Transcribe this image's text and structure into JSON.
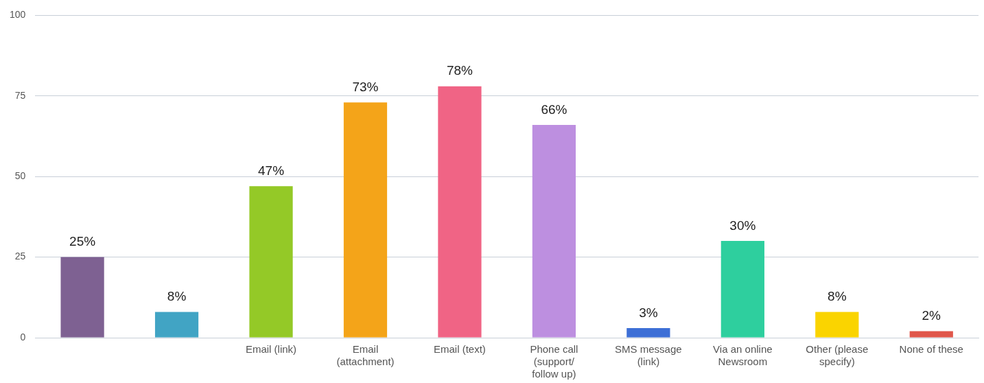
{
  "chart_data": {
    "type": "bar",
    "categories": [
      null,
      null,
      "Email (link)",
      "Email (attachment)",
      "Email (text)",
      "Phone call (support/ follow up)",
      "SMS message (link)",
      "Via an online Newsroom",
      "Other (please specify)",
      "None of these"
    ],
    "values": [
      25,
      8,
      47,
      73,
      78,
      66,
      3,
      30,
      8,
      2
    ],
    "value_labels": [
      "25%",
      "8%",
      "47%",
      "73%",
      "78%",
      "66%",
      "3%",
      "30%",
      "8%",
      "2%"
    ],
    "colors": [
      "#7e6192",
      "#41a4c4",
      "#94c927",
      "#f4a419",
      "#f06485",
      "#bd8fe0",
      "#3d6fd6",
      "#2ecf9e",
      "#fad400",
      "#e0574b"
    ],
    "ylim": [
      0,
      100
    ],
    "yticks": [
      0,
      25,
      50,
      75,
      100
    ],
    "grid": "y",
    "legend": false
  }
}
